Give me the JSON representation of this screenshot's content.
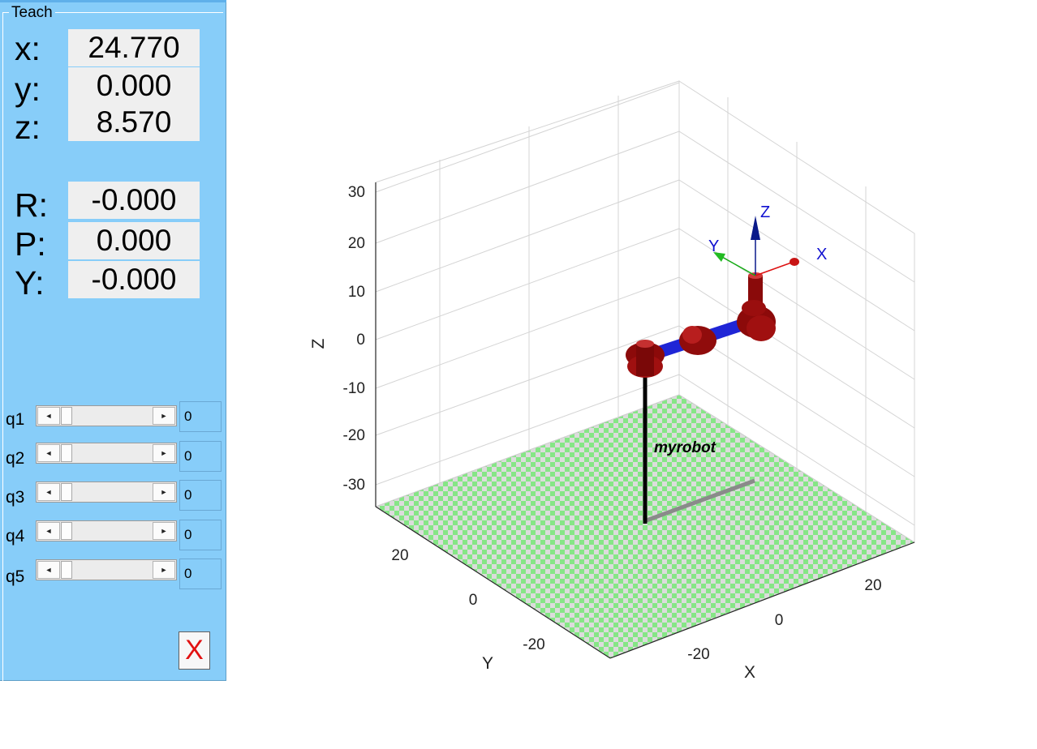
{
  "panel": {
    "title": "Teach",
    "position": [
      {
        "label": "x:",
        "value": "24.770"
      },
      {
        "label": "y:",
        "value": "0.000"
      },
      {
        "label": "z:",
        "value": "8.570"
      }
    ],
    "orientation": [
      {
        "label": "R:",
        "value": "-0.000"
      },
      {
        "label": "P:",
        "value": "0.000"
      },
      {
        "label": "Y:",
        "value": "-0.000"
      }
    ],
    "joints": [
      {
        "label": "q1",
        "value": "0"
      },
      {
        "label": "q2",
        "value": "0"
      },
      {
        "label": "q3",
        "value": "0"
      },
      {
        "label": "q4",
        "value": "0"
      },
      {
        "label": "q5",
        "value": "0"
      }
    ],
    "slider_left_arrow": "◄",
    "slider_right_arrow": "►",
    "close_label": "X"
  },
  "plot": {
    "z_ticks": [
      "30",
      "20",
      "10",
      "0",
      "-10",
      "-20",
      "-30"
    ],
    "y_ticks": [
      "20",
      "0",
      "-20"
    ],
    "x_ticks": [
      "20",
      "0",
      "-20"
    ],
    "xlabel": "X",
    "ylabel": "Y",
    "zlabel": "Z",
    "robot_name": "myrobot",
    "frame_labels": {
      "x": "X",
      "y": "Y",
      "z": "Z"
    },
    "colors": {
      "floor_light": "#dcdcdc",
      "floor_green": "#86e686",
      "link": "#1f25d6",
      "joint": "#9c0d0d",
      "frame_x": "#dd1111",
      "frame_y": "#11aa11",
      "frame_z": "#0a1a8a"
    }
  }
}
